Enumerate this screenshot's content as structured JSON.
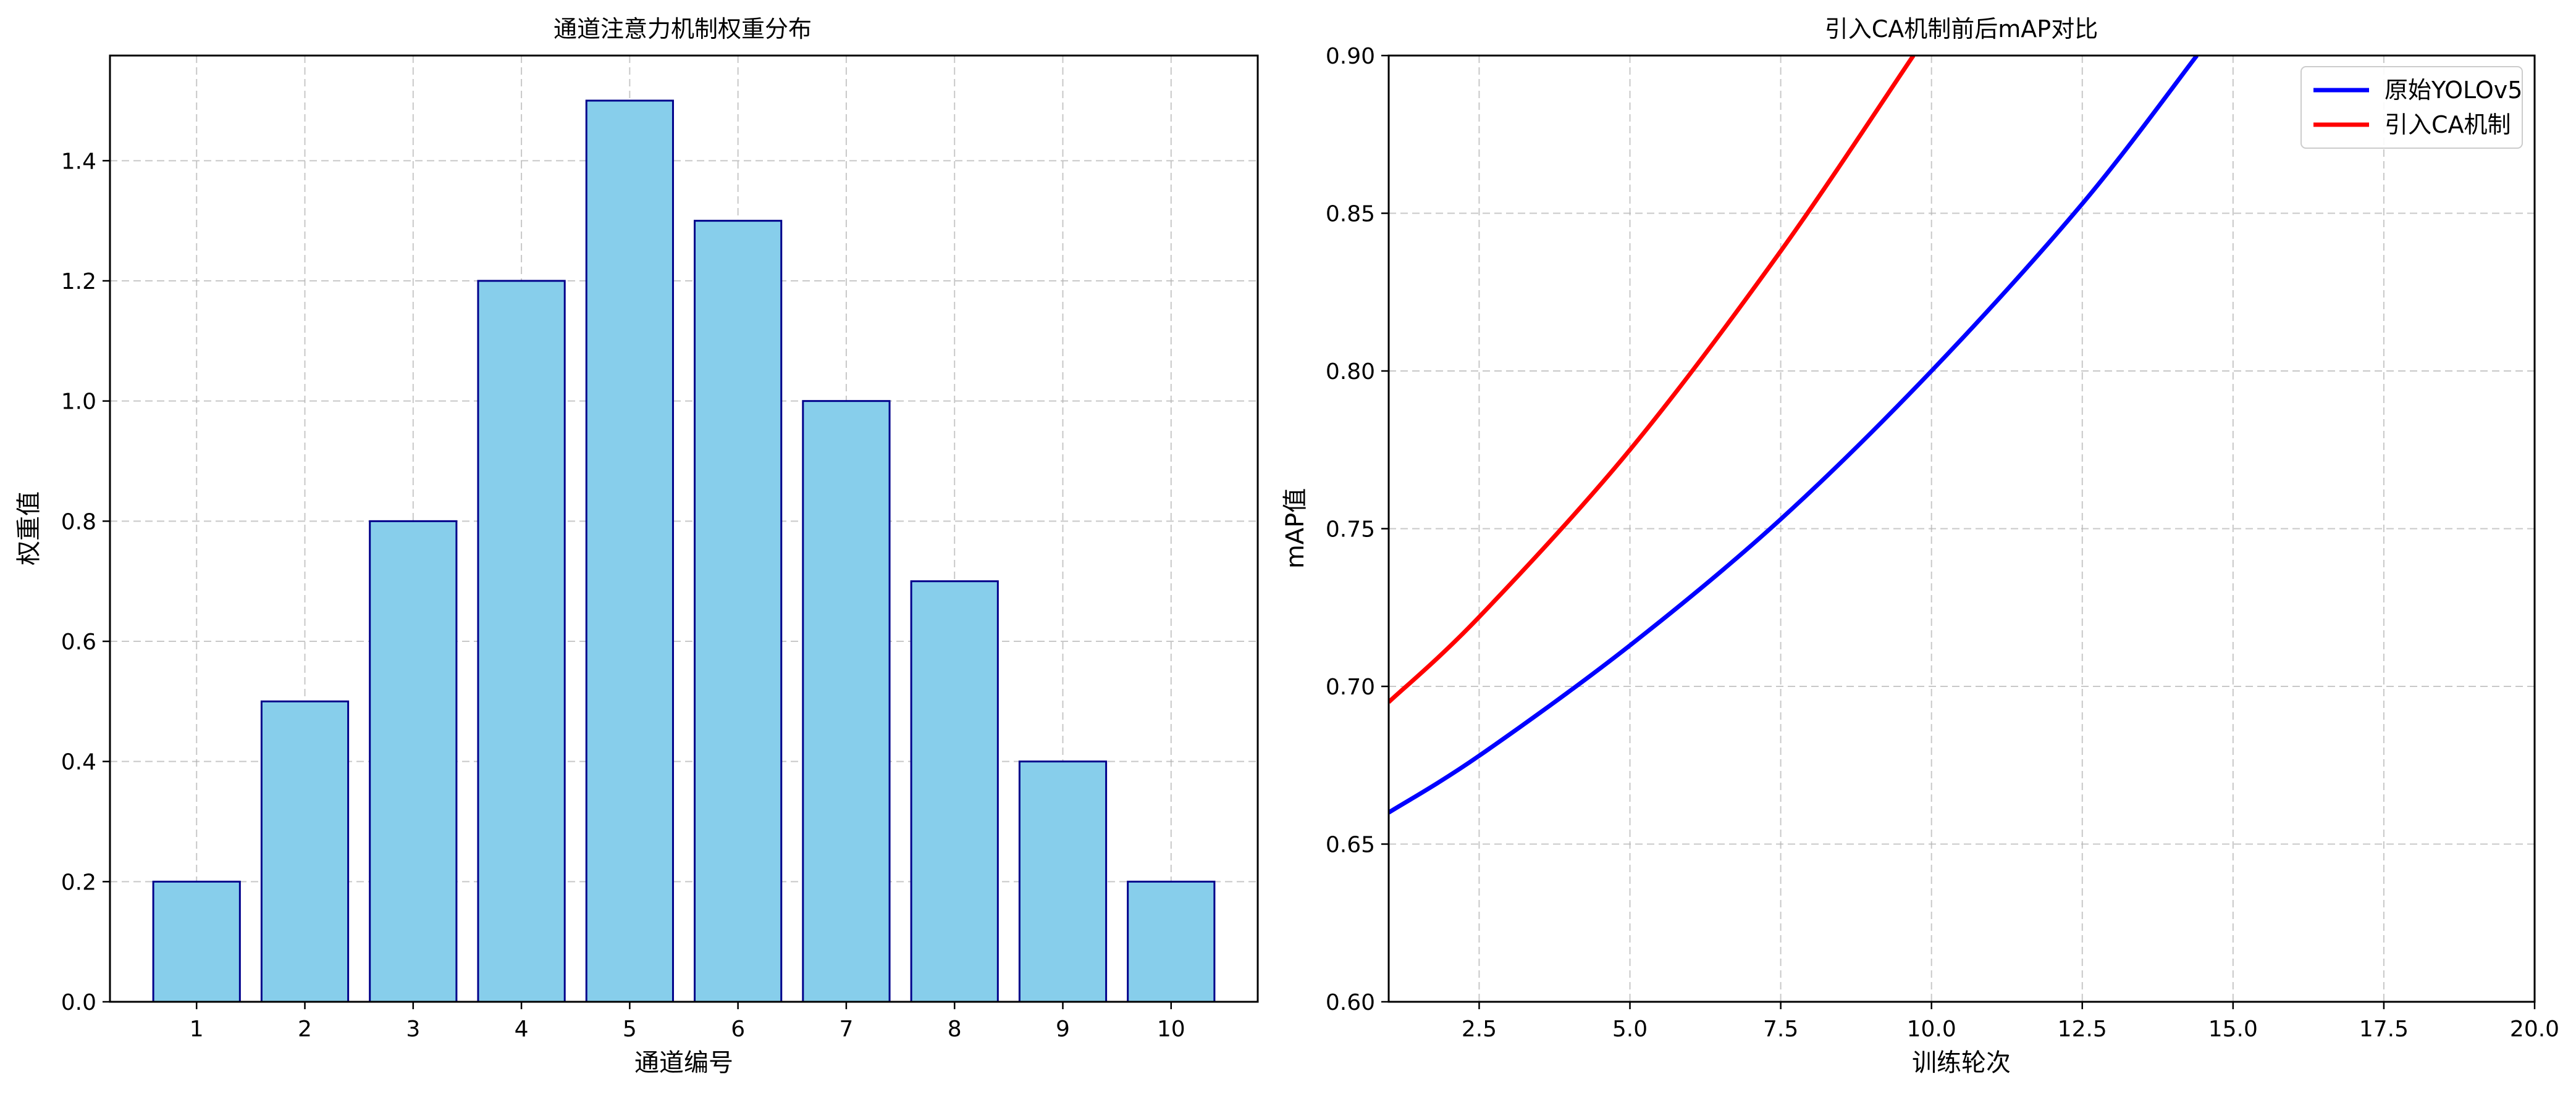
{
  "chart_data": [
    {
      "type": "bar",
      "title": "通道注意力机制权重分布",
      "xlabel": "通道编号",
      "ylabel": "权重值",
      "categories": [
        "1",
        "2",
        "3",
        "4",
        "5",
        "6",
        "7",
        "8",
        "9",
        "10"
      ],
      "values": [
        0.2,
        0.5,
        0.8,
        1.2,
        1.5,
        1.3,
        1.0,
        0.7,
        0.4,
        0.2
      ],
      "ylim": [
        0,
        1.575
      ],
      "yticks": [
        "0.0",
        "0.2",
        "0.4",
        "0.6",
        "0.8",
        "1.0",
        "1.2",
        "1.4"
      ],
      "bar_color": "#87ceeb",
      "edge_color": "#00008b",
      "grid": true
    },
    {
      "type": "line",
      "title": "引入CA机制前后mAP对比",
      "xlabel": "训练轮次",
      "ylabel": "mAP值",
      "xlim": [
        1,
        20
      ],
      "ylim": [
        0.6,
        0.9
      ],
      "xticks": [
        "2.5",
        "5.0",
        "7.5",
        "10.0",
        "12.5",
        "15.0",
        "17.5",
        "20.0"
      ],
      "yticks": [
        "0.60",
        "0.65",
        "0.70",
        "0.75",
        "0.80",
        "0.85",
        "0.90"
      ],
      "grid": true,
      "legend_position": "top-right",
      "series": [
        {
          "name": "原始YOLOv5",
          "color": "#0000ff",
          "x": [
            1,
            2.5,
            5,
            7.5,
            10,
            12.5,
            14.4
          ],
          "y": [
            0.66,
            0.678,
            0.713,
            0.753,
            0.8,
            0.853,
            0.9
          ]
        },
        {
          "name": "引入CA机制",
          "color": "#ff0000",
          "x": [
            1,
            2.5,
            5,
            7.5,
            9.7
          ],
          "y": [
            0.695,
            0.722,
            0.775,
            0.838,
            0.9
          ]
        }
      ]
    }
  ]
}
